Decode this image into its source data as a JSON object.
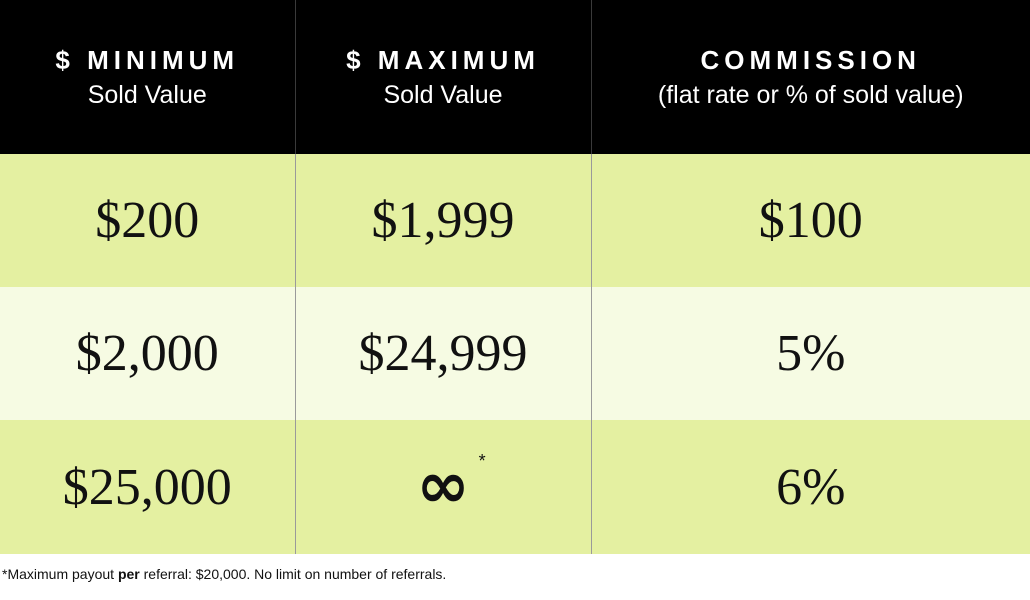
{
  "table": {
    "headers": [
      {
        "top": "$ MINIMUM",
        "sub": "Sold Value"
      },
      {
        "top": "$ MAXIMUM",
        "sub": "Sold Value"
      },
      {
        "top": "COMMISSION",
        "sub": "(flat rate or % of sold value)"
      }
    ],
    "rows": [
      {
        "min": "$200",
        "max": "$1,999",
        "commission": "$100"
      },
      {
        "min": "$2,000",
        "max": "$24,999",
        "commission": "5%"
      },
      {
        "min": "$25,000",
        "max": "∞",
        "max_note": "*",
        "commission": "6%"
      }
    ]
  },
  "footnote": {
    "before": "*Maximum payout ",
    "emphasis": "per",
    "after": " referral: $20,000. No limit on number of referrals."
  },
  "colors": {
    "header_bg": "#000000",
    "row_green": "#e4f0a1",
    "row_light": "#f6fbe3"
  }
}
